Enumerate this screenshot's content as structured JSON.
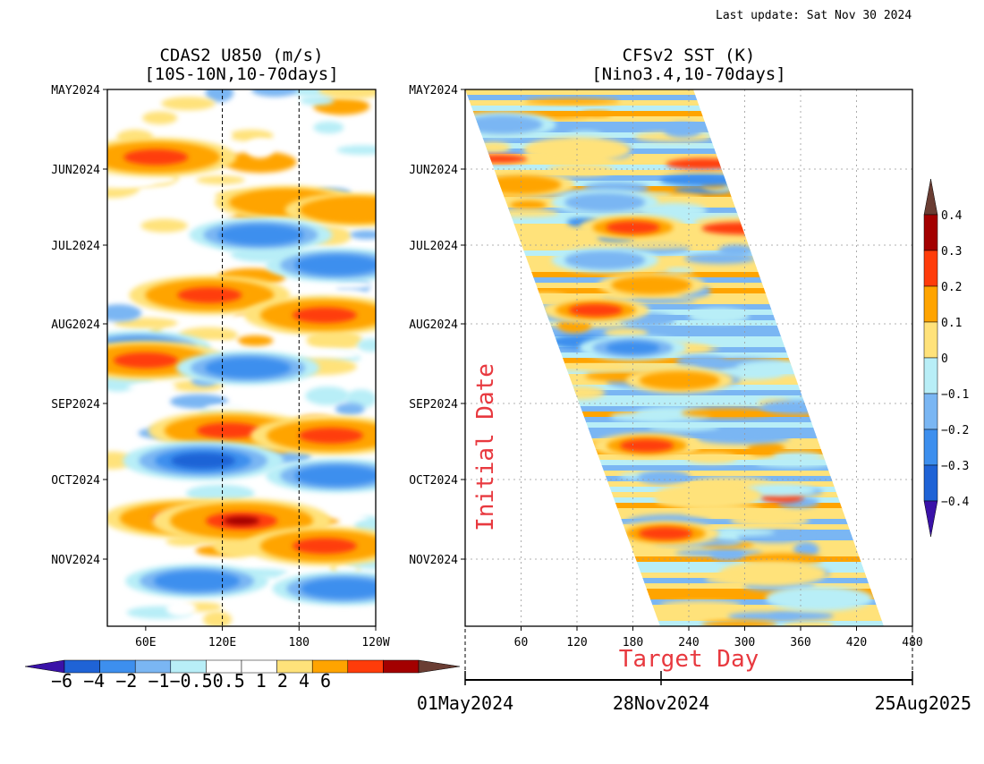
{
  "last_update": "Last update: Sat Nov 30 2024",
  "colors": {
    "blue_vdark": "#3a12a8",
    "blue_dark": "#1f63d6",
    "blue_mid": "#3d8fee",
    "blue_light": "#7ab6f3",
    "cyan": "#b8eef7",
    "white": "#ffffff",
    "yellow": "#ffe27a",
    "orange": "#ffa400",
    "red_orange": "#ff3c0a",
    "dark_red": "#a30000",
    "brown": "#6a3d33",
    "annotation_red": "#e8393f",
    "grid": "#999999"
  },
  "chart_data": [
    {
      "type": "heatmap",
      "title": "CDAS2 U850 (m/s)",
      "subtitle": "[10S-10N,10-70days]",
      "x_ticks": [
        "60E",
        "120E",
        "180",
        "120W"
      ],
      "y_ticks": [
        "MAY2024",
        "JUN2024",
        "JUL2024",
        "AUG2024",
        "SEP2024",
        "OCT2024",
        "NOV2024"
      ],
      "xlim_deg_east": [
        30,
        240
      ],
      "dashed_meridians_deg_east": [
        120,
        180
      ],
      "colorbar": {
        "levels": [
          "-6",
          "-4",
          "-2",
          "-1",
          "-0.5",
          "0.5",
          "1",
          "2",
          "4",
          "6"
        ],
        "label_text": "−6 −4 −2 −1−0.50.5  1   2   4   6",
        "orientation": "horizontal",
        "placement": "below"
      },
      "features": [
        {
          "date": "2024-05-28",
          "lon": 68,
          "value": 4
        },
        {
          "date": "2024-06-15",
          "lon": 170,
          "value": 2
        },
        {
          "date": "2024-06-18",
          "lon": 225,
          "value": 2
        },
        {
          "date": "2024-06-28",
          "lon": 150,
          "value": -2
        },
        {
          "date": "2024-07-10",
          "lon": 210,
          "value": -2
        },
        {
          "date": "2024-07-22",
          "lon": 110,
          "value": 4
        },
        {
          "date": "2024-07-30",
          "lon": 200,
          "value": 4
        },
        {
          "date": "2024-08-12",
          "lon": 55,
          "value": -2
        },
        {
          "date": "2024-08-17",
          "lon": 60,
          "value": 4
        },
        {
          "date": "2024-08-20",
          "lon": 140,
          "value": -2
        },
        {
          "date": "2024-09-14",
          "lon": 125,
          "value": 4
        },
        {
          "date": "2024-09-16",
          "lon": 205,
          "value": 4
        },
        {
          "date": "2024-09-26",
          "lon": 105,
          "value": -4
        },
        {
          "date": "2024-10-02",
          "lon": 210,
          "value": -2
        },
        {
          "date": "2024-10-19",
          "lon": 90,
          "value": 4
        },
        {
          "date": "2024-10-20",
          "lon": 135,
          "value": 6
        },
        {
          "date": "2024-10-30",
          "lon": 200,
          "value": 4
        },
        {
          "date": "2024-11-13",
          "lon": 100,
          "value": -2
        },
        {
          "date": "2024-11-16",
          "lon": 215,
          "value": -2
        }
      ]
    },
    {
      "type": "heatmap",
      "title": "CFSv2 SST (K)",
      "subtitle": "[Nino3.4,10-70days]",
      "xlabel": "Target Day",
      "ylabel": "Initial Date",
      "x_ticks": [
        "60",
        "120",
        "180",
        "240",
        "300",
        "360",
        "420",
        "480"
      ],
      "xlim": [
        0,
        480
      ],
      "y_ticks": [
        "MAY2024",
        "JUN2024",
        "JUL2024",
        "AUG2024",
        "SEP2024",
        "OCT2024",
        "NOV2024"
      ],
      "date_axis": [
        "01May2024",
        "28Nov2024",
        "25Aug2025"
      ],
      "grid": true,
      "colorbar": {
        "levels": [
          "-0.4",
          "-0.3",
          "-0.2",
          "-0.1",
          "0",
          "0.1",
          "0.2",
          "0.3",
          "0.4"
        ],
        "orientation": "vertical",
        "placement": "right"
      },
      "features": [
        {
          "init": "2024-05-15",
          "day": 40,
          "value": -0.2
        },
        {
          "init": "2024-05-25",
          "day": 120,
          "value": 0.1
        },
        {
          "init": "2024-06-08",
          "day": 60,
          "value": 0.2
        },
        {
          "init": "2024-06-15",
          "day": 150,
          "value": -0.2
        },
        {
          "init": "2024-06-25",
          "day": 180,
          "value": 0.3
        },
        {
          "init": "2024-07-08",
          "day": 150,
          "value": -0.2
        },
        {
          "init": "2024-07-18",
          "day": 200,
          "value": 0.2
        },
        {
          "init": "2024-07-28",
          "day": 140,
          "value": 0.3
        },
        {
          "init": "2024-08-12",
          "day": 180,
          "value": -0.3
        },
        {
          "init": "2024-08-25",
          "day": 230,
          "value": 0.2
        },
        {
          "init": "2024-09-20",
          "day": 195,
          "value": 0.3
        },
        {
          "init": "2024-10-10",
          "day": 260,
          "value": 0.1
        },
        {
          "init": "2024-10-25",
          "day": 215,
          "value": 0.3
        },
        {
          "init": "2024-11-10",
          "day": 330,
          "value": 0.1
        },
        {
          "init": "2024-11-20",
          "day": 380,
          "value": -0.1
        }
      ]
    }
  ]
}
